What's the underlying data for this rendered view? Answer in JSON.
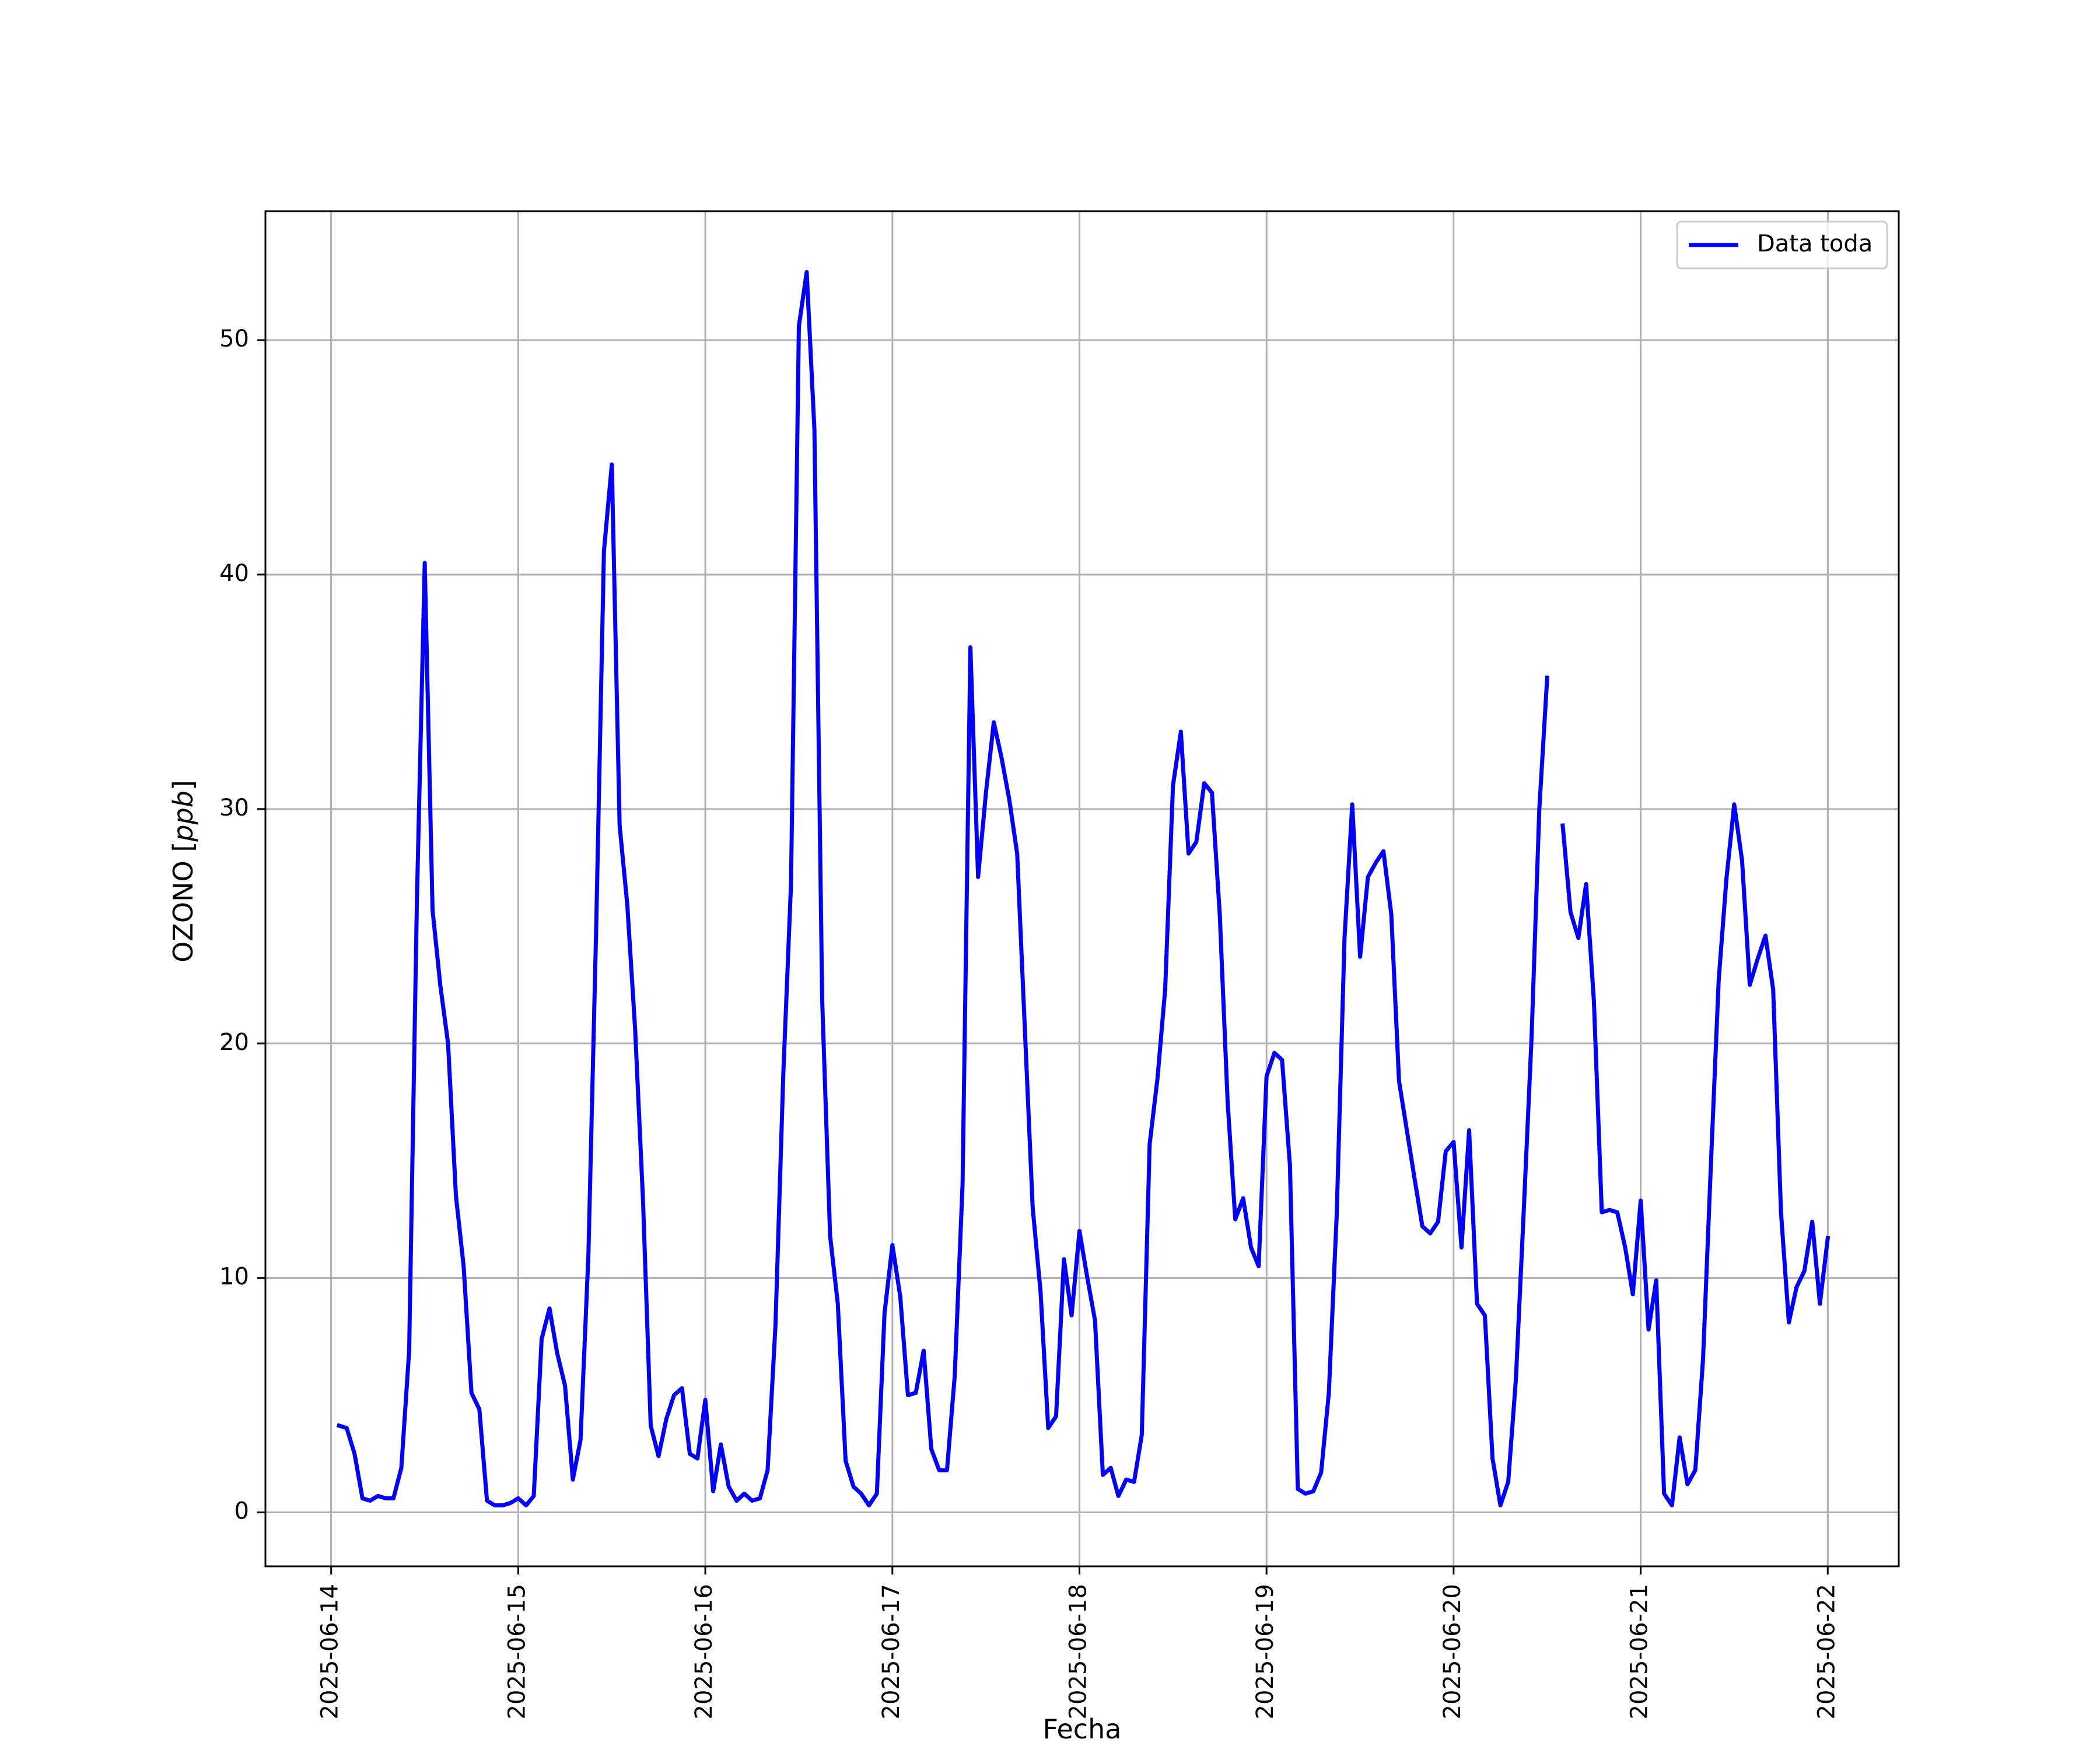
{
  "chart_data": {
    "type": "line",
    "title": "",
    "xlabel": "Fecha",
    "ylabel_prefix": "OZONO [",
    "ylabel_unit": "ppb",
    "ylabel_suffix": "]",
    "x_ticks": [
      "2025-06-14",
      "2025-06-15",
      "2025-06-16",
      "2025-06-17",
      "2025-06-18",
      "2025-06-19",
      "2025-06-20",
      "2025-06-21",
      "2025-06-22"
    ],
    "y_ticks": [
      "0",
      "10",
      "20",
      "30",
      "40",
      "50"
    ],
    "xlim_days": [
      -0.36,
      8.4
    ],
    "ylim": [
      -2.3,
      55.5
    ],
    "grid": true,
    "legend_position": "top-right",
    "series": [
      {
        "name": "Data toda",
        "color": "#0000ff",
        "segments": [
          [
            [
              0.042,
              3.7
            ],
            [
              0.083,
              3.6
            ],
            [
              0.125,
              2.5
            ],
            [
              0.167,
              0.6
            ],
            [
              0.208,
              0.5
            ],
            [
              0.25,
              0.7
            ],
            [
              0.292,
              0.6
            ],
            [
              0.333,
              0.6
            ],
            [
              0.375,
              1.9
            ],
            [
              0.417,
              6.9
            ],
            [
              0.458,
              26
            ],
            [
              0.5,
              40.5
            ],
            [
              0.542,
              25.7
            ],
            [
              0.583,
              22.5
            ],
            [
              0.625,
              20
            ],
            [
              0.667,
              13.5
            ],
            [
              0.708,
              10.5
            ],
            [
              0.75,
              5.1
            ],
            [
              0.792,
              4.4
            ],
            [
              0.833,
              0.5
            ],
            [
              0.875,
              0.3
            ],
            [
              0.917,
              0.3
            ],
            [
              0.958,
              0.4
            ],
            [
              1.0,
              0.6
            ],
            [
              1.042,
              0.3
            ],
            [
              1.083,
              0.7
            ],
            [
              1.125,
              7.4
            ],
            [
              1.167,
              8.7
            ],
            [
              1.208,
              6.8
            ],
            [
              1.25,
              5.4
            ],
            [
              1.292,
              1.4
            ],
            [
              1.333,
              3.1
            ],
            [
              1.375,
              11
            ],
            [
              1.417,
              25
            ],
            [
              1.458,
              41
            ],
            [
              1.5,
              44.7
            ],
            [
              1.542,
              29.3
            ],
            [
              1.583,
              25.9
            ],
            [
              1.625,
              20.6
            ],
            [
              1.667,
              13.3
            ],
            [
              1.708,
              3.7
            ],
            [
              1.75,
              2.4
            ],
            [
              1.792,
              4
            ],
            [
              1.833,
              5
            ],
            [
              1.875,
              5.3
            ],
            [
              1.917,
              2.5
            ],
            [
              1.958,
              2.3
            ],
            [
              2.0,
              4.8
            ],
            [
              2.042,
              0.9
            ],
            [
              2.083,
              2.9
            ],
            [
              2.125,
              1.1
            ],
            [
              2.167,
              0.5
            ],
            [
              2.208,
              0.8
            ],
            [
              2.25,
              0.5
            ],
            [
              2.292,
              0.6
            ],
            [
              2.333,
              1.8
            ],
            [
              2.375,
              8
            ],
            [
              2.417,
              18.7
            ],
            [
              2.458,
              26.8
            ],
            [
              2.5,
              50.6
            ],
            [
              2.542,
              52.9
            ],
            [
              2.583,
              46.2
            ],
            [
              2.625,
              21.8
            ],
            [
              2.667,
              11.8
            ],
            [
              2.708,
              8.9
            ],
            [
              2.75,
              2.2
            ],
            [
              2.792,
              1.1
            ],
            [
              2.833,
              0.8
            ],
            [
              2.875,
              0.3
            ],
            [
              2.917,
              0.8
            ],
            [
              2.958,
              8.5
            ],
            [
              3.0,
              11.4
            ],
            [
              3.042,
              9.2
            ],
            [
              3.083,
              5
            ],
            [
              3.125,
              5.1
            ],
            [
              3.167,
              6.9
            ],
            [
              3.208,
              2.7
            ],
            [
              3.25,
              1.8
            ],
            [
              3.292,
              1.8
            ],
            [
              3.333,
              5.8
            ],
            [
              3.375,
              14
            ],
            [
              3.417,
              36.9
            ],
            [
              3.458,
              27.1
            ],
            [
              3.5,
              30.7
            ],
            [
              3.542,
              33.7
            ],
            [
              3.583,
              32.2
            ],
            [
              3.625,
              30.4
            ],
            [
              3.667,
              28.1
            ],
            [
              3.708,
              20.6
            ],
            [
              3.75,
              13
            ],
            [
              3.792,
              9.4
            ],
            [
              3.833,
              3.6
            ],
            [
              3.875,
              4.1
            ],
            [
              3.917,
              10.8
            ],
            [
              3.958,
              8.4
            ],
            [
              4.0,
              12
            ],
            [
              4.042,
              10
            ],
            [
              4.083,
              8.2
            ],
            [
              4.125,
              1.6
            ],
            [
              4.167,
              1.9
            ],
            [
              4.208,
              0.7
            ],
            [
              4.25,
              1.4
            ],
            [
              4.292,
              1.3
            ],
            [
              4.333,
              3.3
            ],
            [
              4.375,
              15.7
            ],
            [
              4.417,
              18.5
            ],
            [
              4.458,
              22.3
            ],
            [
              4.5,
              31
            ],
            [
              4.542,
              33.3
            ],
            [
              4.583,
              28.1
            ],
            [
              4.625,
              28.6
            ],
            [
              4.667,
              31.1
            ],
            [
              4.708,
              30.7
            ],
            [
              4.75,
              25.5
            ],
            [
              4.792,
              17.5
            ],
            [
              4.833,
              12.5
            ],
            [
              4.875,
              13.4
            ],
            [
              4.917,
              11.3
            ],
            [
              4.958,
              10.5
            ],
            [
              5.0,
              18.6
            ],
            [
              5.042,
              19.6
            ],
            [
              5.083,
              19.3
            ],
            [
              5.125,
              14.8
            ],
            [
              5.167,
              1
            ],
            [
              5.208,
              0.8
            ],
            [
              5.25,
              0.9
            ],
            [
              5.292,
              1.7
            ],
            [
              5.333,
              5.1
            ],
            [
              5.375,
              12.7
            ],
            [
              5.417,
              24.5
            ],
            [
              5.458,
              30.2
            ],
            [
              5.5,
              23.7
            ],
            [
              5.542,
              27.1
            ],
            [
              5.583,
              27.7
            ],
            [
              5.625,
              28.2
            ],
            [
              5.667,
              25.5
            ],
            [
              5.708,
              18.4
            ],
            [
              5.75,
              16.3
            ],
            [
              5.792,
              14.2
            ],
            [
              5.833,
              12.2
            ],
            [
              5.875,
              11.9
            ],
            [
              5.917,
              12.4
            ],
            [
              5.958,
              15.4
            ],
            [
              6.0,
              15.8
            ],
            [
              6.042,
              11.3
            ],
            [
              6.083,
              16.3
            ],
            [
              6.125,
              8.9
            ],
            [
              6.167,
              8.4
            ],
            [
              6.208,
              2.3
            ],
            [
              6.25,
              0.3
            ],
            [
              6.292,
              1.3
            ],
            [
              6.333,
              5.7
            ],
            [
              6.375,
              12.9
            ],
            [
              6.417,
              20.3
            ],
            [
              6.458,
              30
            ],
            [
              6.5,
              35.6
            ]
          ],
          [
            [
              6.583,
              29.3
            ],
            [
              6.625,
              25.6
            ],
            [
              6.667,
              24.5
            ],
            [
              6.708,
              26.8
            ],
            [
              6.75,
              21.8
            ],
            [
              6.792,
              12.8
            ],
            [
              6.833,
              12.9
            ],
            [
              6.875,
              12.8
            ],
            [
              6.917,
              11.3
            ],
            [
              6.958,
              9.3
            ],
            [
              7.0,
              13.3
            ],
            [
              7.042,
              7.8
            ],
            [
              7.083,
              9.9
            ],
            [
              7.125,
              0.8
            ],
            [
              7.167,
              0.3
            ],
            [
              7.208,
              3.2
            ],
            [
              7.25,
              1.2
            ],
            [
              7.292,
              1.8
            ],
            [
              7.333,
              6.5
            ],
            [
              7.375,
              14.8
            ],
            [
              7.417,
              22.7
            ],
            [
              7.458,
              27
            ],
            [
              7.5,
              30.2
            ],
            [
              7.542,
              27.8
            ],
            [
              7.583,
              22.5
            ],
            [
              7.625,
              23.6
            ],
            [
              7.667,
              24.6
            ],
            [
              7.708,
              22.3
            ],
            [
              7.75,
              12.8
            ],
            [
              7.792,
              8.1
            ],
            [
              7.833,
              9.6
            ],
            [
              7.875,
              10.3
            ],
            [
              7.917,
              12.4
            ],
            [
              7.958,
              8.9
            ],
            [
              8.0,
              11.7
            ]
          ]
        ]
      }
    ]
  }
}
